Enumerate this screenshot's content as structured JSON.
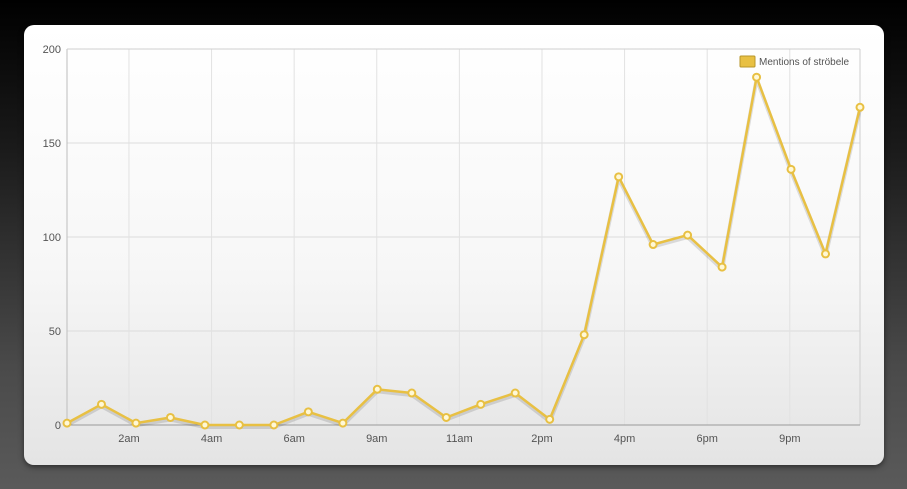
{
  "chart_data": {
    "type": "line",
    "title": "",
    "xlabel": "",
    "ylabel": "",
    "ylim": [
      0,
      200
    ],
    "y_ticks": [
      0,
      50,
      100,
      150,
      200
    ],
    "x_tick_labels": [
      "2am",
      "4am",
      "6am",
      "9am",
      "11am",
      "2pm",
      "4pm",
      "6pm",
      "9pm"
    ],
    "grid": true,
    "legend_position": "top-right",
    "series": [
      {
        "name": "Mentions of ströbele",
        "color": "#e8c043",
        "values": [
          1,
          11,
          1,
          4,
          0,
          0,
          0,
          7,
          1,
          19,
          17,
          4,
          11,
          17,
          3,
          48,
          132,
          96,
          101,
          84,
          185,
          136,
          91,
          169
        ]
      }
    ]
  }
}
